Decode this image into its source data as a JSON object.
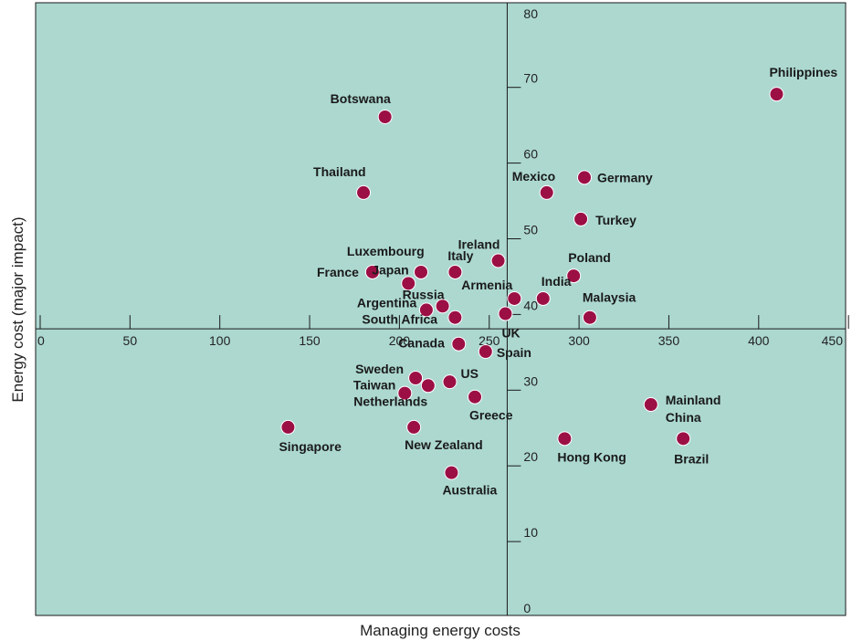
{
  "chart_data": {
    "type": "scatter",
    "title": "",
    "xlabel": "Managing energy costs",
    "ylabel": "Energy cost (major impact)",
    "xlim": [
      0,
      450
    ],
    "ylim": [
      0,
      80
    ],
    "x_ticks": [
      0,
      50,
      100,
      150,
      200,
      250,
      300,
      350,
      400,
      450
    ],
    "y_ticks": [
      0,
      10,
      20,
      30,
      40,
      50,
      60,
      70,
      80
    ],
    "x_axis_crosses_y_at": 37.5,
    "y_axis_crosses_x_at": 260,
    "grid": false,
    "legend": "none",
    "colors": {
      "background": "#acd8d0",
      "marker": "#9c0f45",
      "marker_stroke": "#ffffff",
      "axis": "#1a1a1a"
    },
    "points": [
      {
        "name": "Philippines",
        "x": 410,
        "y": 68.5
      },
      {
        "name": "Botswana",
        "x": 192,
        "y": 65.5
      },
      {
        "name": "Thailand",
        "x": 180,
        "y": 55.5
      },
      {
        "name": "Mexico",
        "x": 282,
        "y": 55.5
      },
      {
        "name": "Germany",
        "x": 303,
        "y": 57.5
      },
      {
        "name": "Turkey",
        "x": 301,
        "y": 52
      },
      {
        "name": "Ireland",
        "x": 255,
        "y": 46.5
      },
      {
        "name": "Luxembourg",
        "x": 185,
        "y": 45
      },
      {
        "name": "Japan",
        "x": 205,
        "y": 43.5
      },
      {
        "name": "France",
        "x": 212,
        "y": 45
      },
      {
        "name": "Italy",
        "x": 231,
        "y": 45
      },
      {
        "name": "Russia",
        "x": 224,
        "y": 40.5
      },
      {
        "name": "Argentina",
        "x": 215,
        "y": 40
      },
      {
        "name": "South Africa",
        "x": 231,
        "y": 39
      },
      {
        "name": "Armenia",
        "x": 264,
        "y": 41.5
      },
      {
        "name": "UK",
        "x": 259,
        "y": 39.5
      },
      {
        "name": "India",
        "x": 280,
        "y": 41.5
      },
      {
        "name": "Poland",
        "x": 297,
        "y": 44.5
      },
      {
        "name": "Malaysia",
        "x": 306,
        "y": 39
      },
      {
        "name": "Canada",
        "x": 233,
        "y": 35.5
      },
      {
        "name": "Spain",
        "x": 248,
        "y": 34.5
      },
      {
        "name": "Sweden",
        "x": 209,
        "y": 31
      },
      {
        "name": "Taiwan",
        "x": 216,
        "y": 30
      },
      {
        "name": "US",
        "x": 228,
        "y": 30.5
      },
      {
        "name": "Netherlands",
        "x": 203,
        "y": 29
      },
      {
        "name": "Greece",
        "x": 242,
        "y": 28.5
      },
      {
        "name": "Mainland China",
        "x": 340,
        "y": 27.5
      },
      {
        "name": "Singapore",
        "x": 138,
        "y": 24.5
      },
      {
        "name": "New Zealand",
        "x": 208,
        "y": 24.5
      },
      {
        "name": "Hong Kong",
        "x": 292,
        "y": 23
      },
      {
        "name": "Brazil",
        "x": 358,
        "y": 23
      },
      {
        "name": "Australia",
        "x": 229,
        "y": 18.5
      }
    ]
  }
}
